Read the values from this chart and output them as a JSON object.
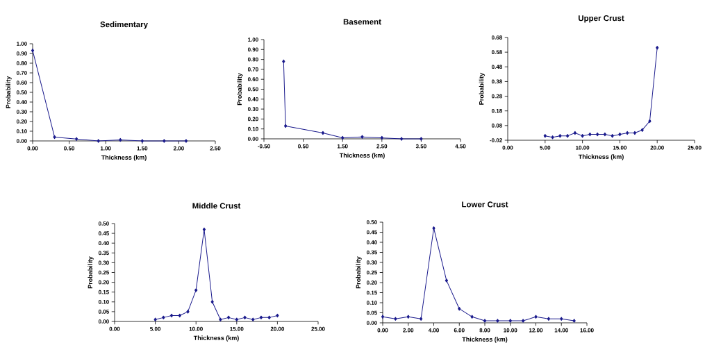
{
  "chart_data": [
    {
      "type": "line",
      "title": "Sedimentary",
      "xlabel": "Thickness (km)",
      "ylabel": "Probability",
      "marker": "diamond",
      "line_style": "solid",
      "x": [
        0,
        0.3,
        0.6,
        0.9,
        1.2,
        1.5,
        1.8,
        2.1
      ],
      "series": [
        {
          "color": "#1a1a8c",
          "values": [
            0.93,
            0.04,
            0.02,
            0.0,
            0.01,
            0.0,
            0.0,
            0.0
          ]
        }
      ],
      "xlim": [
        0,
        2.5
      ],
      "ylim": [
        0,
        1
      ],
      "xticks": [
        {
          "value": 0,
          "label": "0.00"
        },
        {
          "value": 0.5,
          "label": "0.50"
        },
        {
          "value": 1,
          "label": "1.00"
        },
        {
          "value": 1.5,
          "label": "1.50"
        },
        {
          "value": 2,
          "label": "2.00"
        },
        {
          "value": 2.5,
          "label": "2.50"
        }
      ],
      "yticks": [
        {
          "value": 0,
          "label": "0.00"
        },
        {
          "value": 0.1,
          "label": "0.10"
        },
        {
          "value": 0.2,
          "label": "0.20"
        },
        {
          "value": 0.3,
          "label": "0.30"
        },
        {
          "value": 0.4,
          "label": "0.40"
        },
        {
          "value": 0.5,
          "label": "0.50"
        },
        {
          "value": 0.6,
          "label": "0.60"
        },
        {
          "value": 0.7,
          "label": "0.70"
        },
        {
          "value": 0.8,
          "label": "0.80"
        },
        {
          "value": 0.9,
          "label": "0.90"
        },
        {
          "value": 1,
          "label": "1.00"
        }
      ]
    },
    {
      "type": "line",
      "title": "Basement",
      "xlabel": "Thickness (km)",
      "ylabel": "Probability",
      "marker": "diamond",
      "line_style": "solid",
      "x": [
        0,
        0.05,
        1,
        1.5,
        2,
        2.5,
        3,
        3.5
      ],
      "series": [
        {
          "color": "#1a1a8c",
          "values": [
            0.78,
            0.13,
            0.06,
            0.01,
            0.02,
            0.01,
            0.0,
            0.0
          ]
        }
      ],
      "xlim": [
        -0.5,
        4.5
      ],
      "ylim": [
        0,
        1
      ],
      "xticks": [
        {
          "value": -0.5,
          "label": "-0.50"
        },
        {
          "value": 0.5,
          "label": "0.50"
        },
        {
          "value": 1.5,
          "label": "1.50"
        },
        {
          "value": 2.5,
          "label": "2.50"
        },
        {
          "value": 3.5,
          "label": "3.50"
        },
        {
          "value": 4.5,
          "label": "4.50"
        }
      ],
      "yticks": [
        {
          "value": 0,
          "label": "0.00"
        },
        {
          "value": 0.1,
          "label": "0.10"
        },
        {
          "value": 0.2,
          "label": "0.20"
        },
        {
          "value": 0.3,
          "label": "0.30"
        },
        {
          "value": 0.4,
          "label": "0.40"
        },
        {
          "value": 0.5,
          "label": "0.50"
        },
        {
          "value": 0.6,
          "label": "0.60"
        },
        {
          "value": 0.7,
          "label": "0.70"
        },
        {
          "value": 0.8,
          "label": "0.80"
        },
        {
          "value": 0.9,
          "label": "0.90"
        },
        {
          "value": 1,
          "label": "1.00"
        }
      ]
    },
    {
      "type": "line",
      "title": "Upper Crust",
      "xlabel": "Thickness (km)",
      "ylabel": "Probability",
      "marker": "diamond",
      "line_style": "solid",
      "x": [
        5,
        6,
        7,
        8,
        9,
        10,
        11,
        12,
        13,
        14,
        15,
        16,
        17,
        18,
        19,
        20
      ],
      "series": [
        {
          "color": "#1a1a8c",
          "values": [
            0.01,
            0.0,
            0.01,
            0.01,
            0.03,
            0.01,
            0.02,
            0.02,
            0.02,
            0.01,
            0.02,
            0.03,
            0.03,
            0.05,
            0.11,
            0.61
          ]
        }
      ],
      "xlim": [
        0,
        25
      ],
      "ylim": [
        -0.02,
        0.68
      ],
      "xticks": [
        {
          "value": 0,
          "label": "0.00"
        },
        {
          "value": 5,
          "label": "5.00"
        },
        {
          "value": 10,
          "label": "10.00"
        },
        {
          "value": 15,
          "label": "15.00"
        },
        {
          "value": 20,
          "label": "20.00"
        },
        {
          "value": 25,
          "label": "25.00"
        }
      ],
      "yticks": [
        -0.02,
        0.08,
        0.18,
        0.28,
        0.38,
        0.48,
        0.58,
        0.68
      ]
    },
    {
      "type": "line",
      "title": "Middle Crust",
      "xlabel": "Thickness (km)",
      "ylabel": "Probability",
      "marker": "diamond",
      "line_style": "solid",
      "x": [
        5,
        6,
        7,
        8,
        9,
        10,
        11,
        12,
        13,
        14,
        15,
        16,
        17,
        18,
        19,
        20
      ],
      "series": [
        {
          "color": "#1a1a8c",
          "values": [
            0.01,
            0.02,
            0.03,
            0.03,
            0.05,
            0.16,
            0.47,
            0.1,
            0.01,
            0.02,
            0.01,
            0.02,
            0.01,
            0.02,
            0.02,
            0.03
          ]
        }
      ],
      "xlim": [
        0,
        25
      ],
      "ylim": [
        0,
        0.5
      ],
      "xticks": [
        {
          "value": 0,
          "label": "0.00"
        },
        {
          "value": 5,
          "label": "5.00"
        },
        {
          "value": 10,
          "label": "10.00"
        },
        {
          "value": 15,
          "label": "15.00"
        },
        {
          "value": 20,
          "label": "20.00"
        },
        {
          "value": 25,
          "label": "25.00"
        }
      ],
      "yticks": [
        {
          "value": 0,
          "label": "0.00"
        },
        0.05,
        {
          "value": 0.1,
          "label": "0.10"
        },
        0.15,
        {
          "value": 0.2,
          "label": "0.20"
        },
        0.25,
        {
          "value": 0.3,
          "label": "0.30"
        },
        0.35,
        {
          "value": 0.4,
          "label": "0.40"
        },
        0.45,
        {
          "value": 0.5,
          "label": "0.50"
        }
      ]
    },
    {
      "type": "line",
      "title": "Lower Crust",
      "xlabel": "Thickness (km)",
      "ylabel": "Probability",
      "marker": "diamond",
      "line_style": "solid",
      "x": [
        0,
        1,
        2,
        3,
        4,
        5,
        6,
        7,
        8,
        9,
        10,
        11,
        12,
        13,
        14,
        15
      ],
      "series": [
        {
          "color": "#1a1a8c",
          "values": [
            0.03,
            0.02,
            0.03,
            0.02,
            0.47,
            0.21,
            0.07,
            0.03,
            0.01,
            0.01,
            0.01,
            0.01,
            0.03,
            0.02,
            0.02,
            0.01
          ]
        }
      ],
      "xlim": [
        0,
        16
      ],
      "ylim": [
        0,
        0.5
      ],
      "xticks": [
        {
          "value": 0,
          "label": "0.00"
        },
        {
          "value": 2,
          "label": "2.00"
        },
        {
          "value": 4,
          "label": "4.00"
        },
        {
          "value": 6,
          "label": "6.00"
        },
        {
          "value": 8,
          "label": "8.00"
        },
        {
          "value": 10,
          "label": "10.00"
        },
        {
          "value": 12,
          "label": "12.00"
        },
        {
          "value": 14,
          "label": "14.00"
        },
        {
          "value": 16,
          "label": "16.00"
        }
      ],
      "yticks": [
        {
          "value": 0,
          "label": "0.00"
        },
        0.05,
        {
          "value": 0.1,
          "label": "0.10"
        },
        0.15,
        {
          "value": 0.2,
          "label": "0.20"
        },
        0.25,
        {
          "value": 0.3,
          "label": "0.30"
        },
        0.35,
        {
          "value": 0.4,
          "label": "0.40"
        },
        0.45,
        {
          "value": 0.5,
          "label": "0.50"
        }
      ]
    }
  ]
}
